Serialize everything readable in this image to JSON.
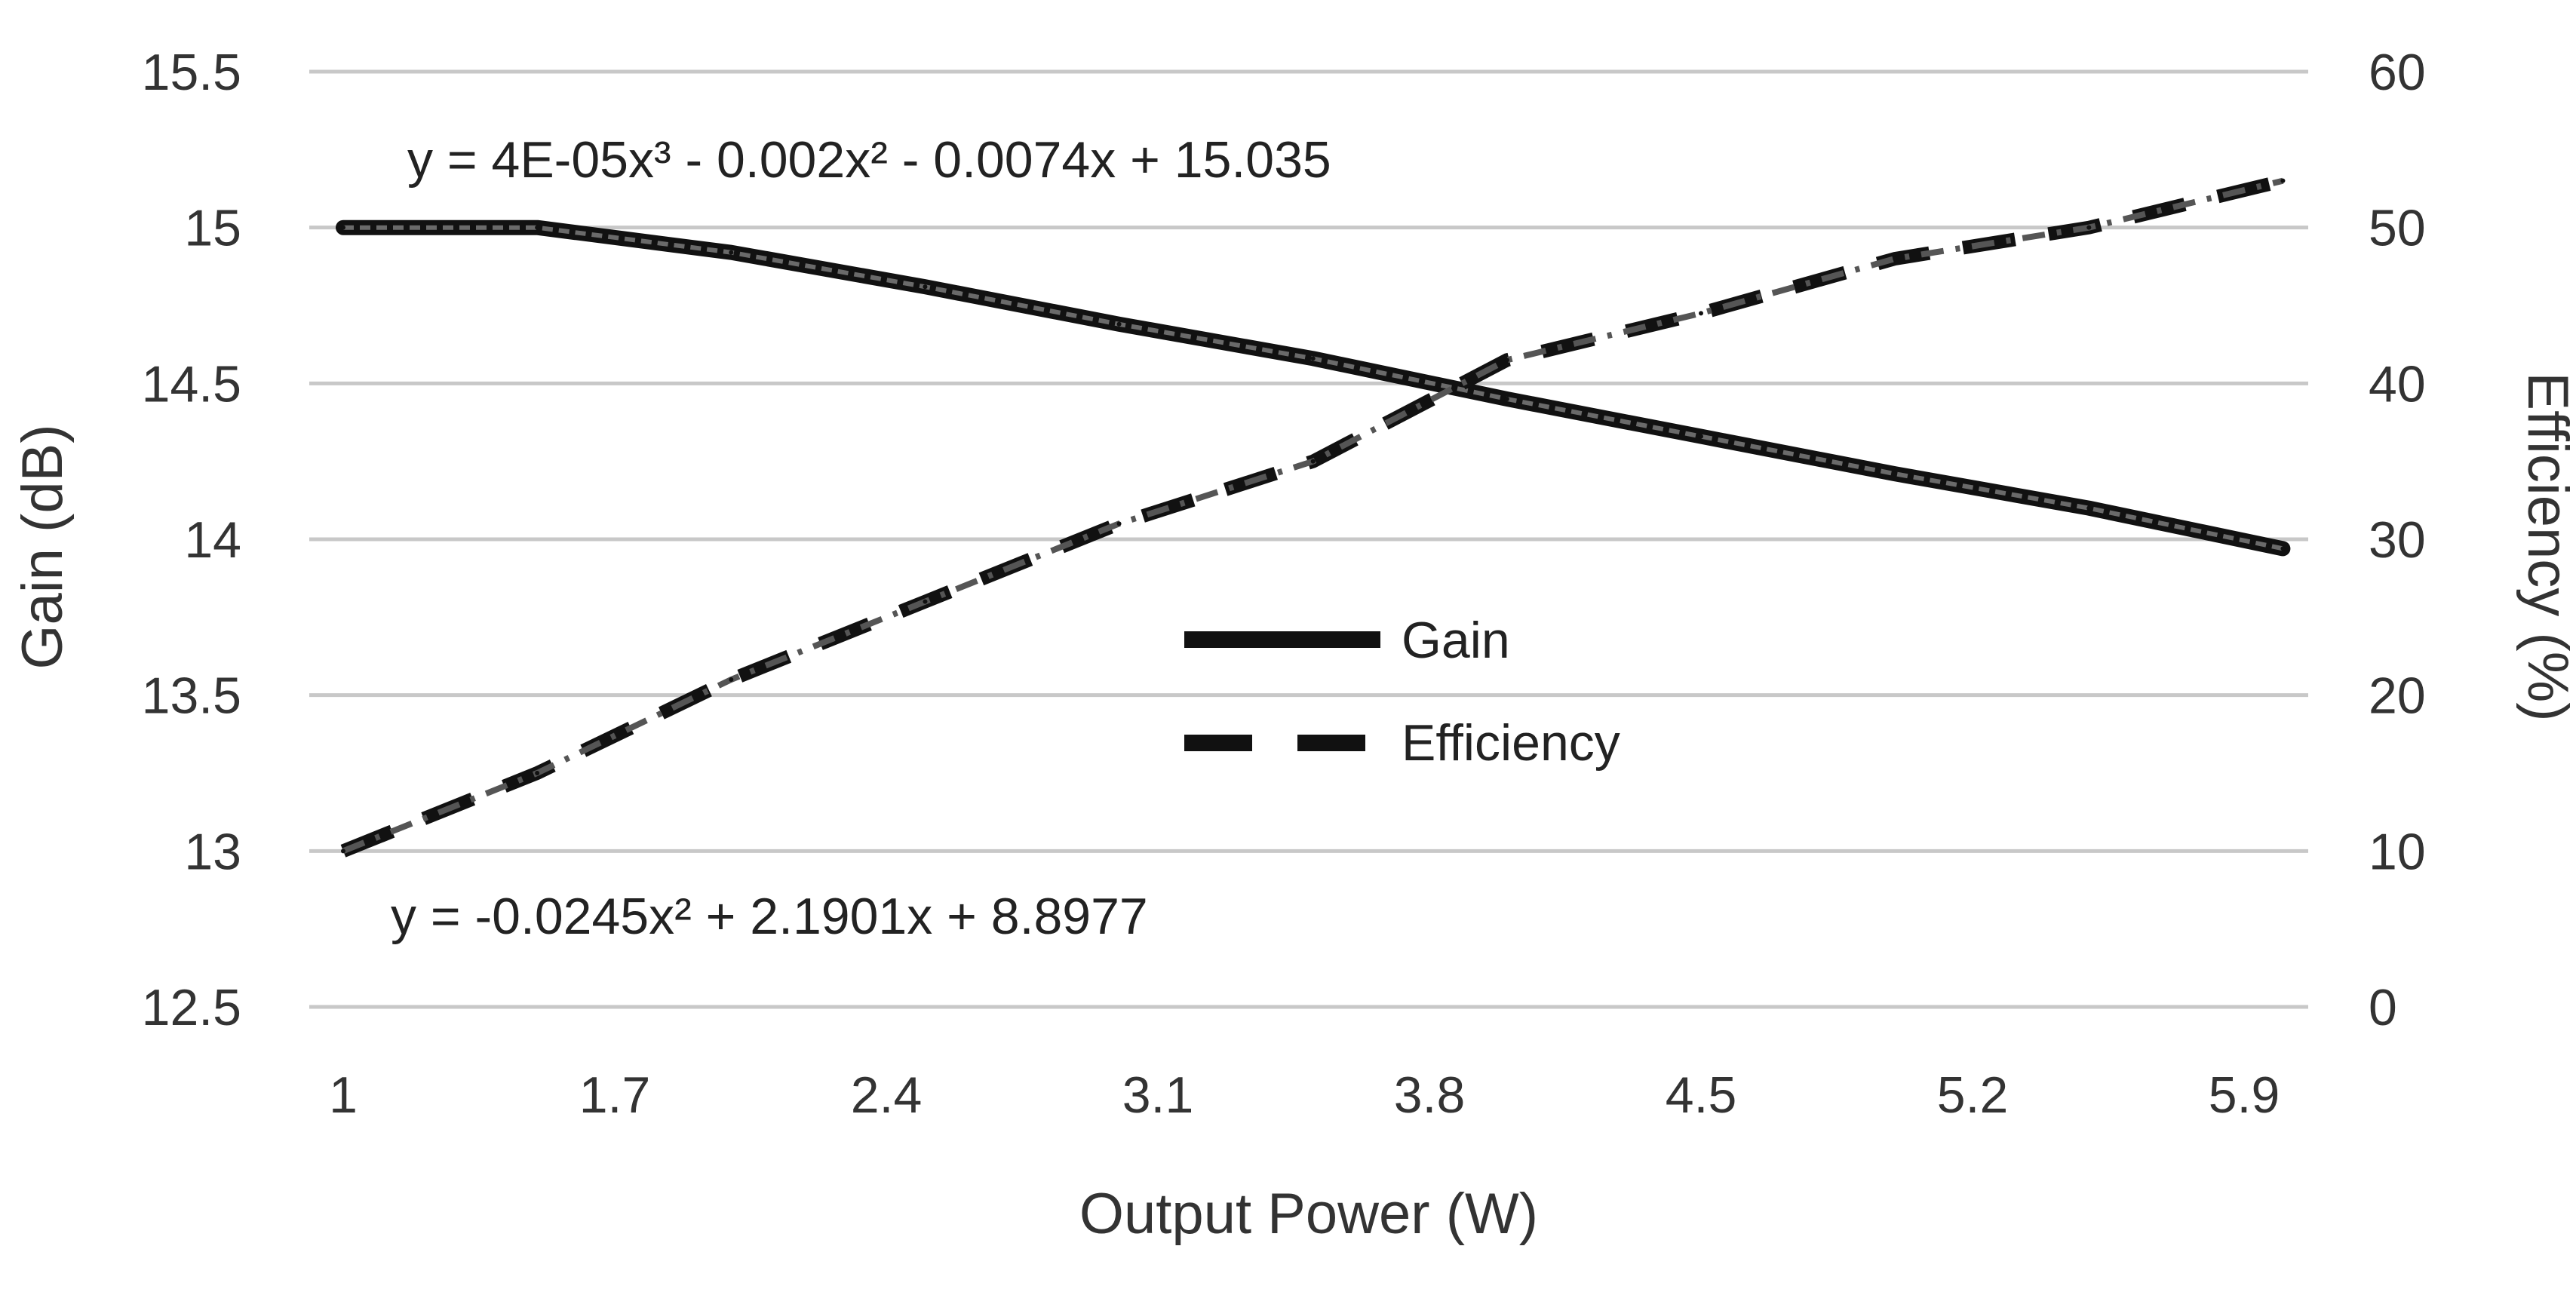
{
  "chart_data": {
    "type": "line",
    "xlabel": "Output Power (W)",
    "ylabel": "Gain (dB)",
    "y2label": "Efficiency (%)",
    "x_ticks": [
      "1",
      "1.7",
      "2.4",
      "3.1",
      "3.8",
      "4.5",
      "5.2",
      "5.9"
    ],
    "y_ticks": [
      "15.5",
      "15",
      "14.5",
      "14",
      "13.5",
      "13",
      "12.5"
    ],
    "y2_ticks": [
      "60",
      "50",
      "40",
      "30",
      "20",
      "10",
      "0"
    ],
    "ylim": [
      12.5,
      15.5
    ],
    "y2lim": [
      0,
      60
    ],
    "xlim": [
      1,
      6
    ],
    "legend": [
      {
        "name": "Gain",
        "style": "solid"
      },
      {
        "name": "Efficiency",
        "style": "dashed"
      }
    ],
    "legend_position": "center",
    "grid": true,
    "series": [
      {
        "name": "Gain",
        "axis": "left",
        "x": [
          1.0,
          1.5,
          2.0,
          2.5,
          3.0,
          3.5,
          4.0,
          4.5,
          5.0,
          5.5,
          6.0
        ],
        "values": [
          15.0,
          15.0,
          14.92,
          14.81,
          14.69,
          14.58,
          14.45,
          14.33,
          14.21,
          14.1,
          13.97
        ]
      },
      {
        "name": "Efficiency",
        "axis": "right",
        "x": [
          1.0,
          1.5,
          2.0,
          2.5,
          3.0,
          3.5,
          4.0,
          4.5,
          5.0,
          5.5,
          6.0
        ],
        "values": [
          10.0,
          15.0,
          21.0,
          26.0,
          31.0,
          35.0,
          41.5,
          44.5,
          48.0,
          50.0,
          53.0
        ]
      }
    ],
    "trendlines": [
      {
        "series": "Gain",
        "equation": "y = 4E-05x³ - 0.002x² - 0.0074x + 15.035"
      },
      {
        "series": "Efficiency",
        "equation": "y = -0.0245x² + 2.1901x + 8.8977"
      }
    ],
    "colors": {
      "line": "#111111",
      "grid": "#c8c8c8",
      "text": "#333333"
    }
  }
}
